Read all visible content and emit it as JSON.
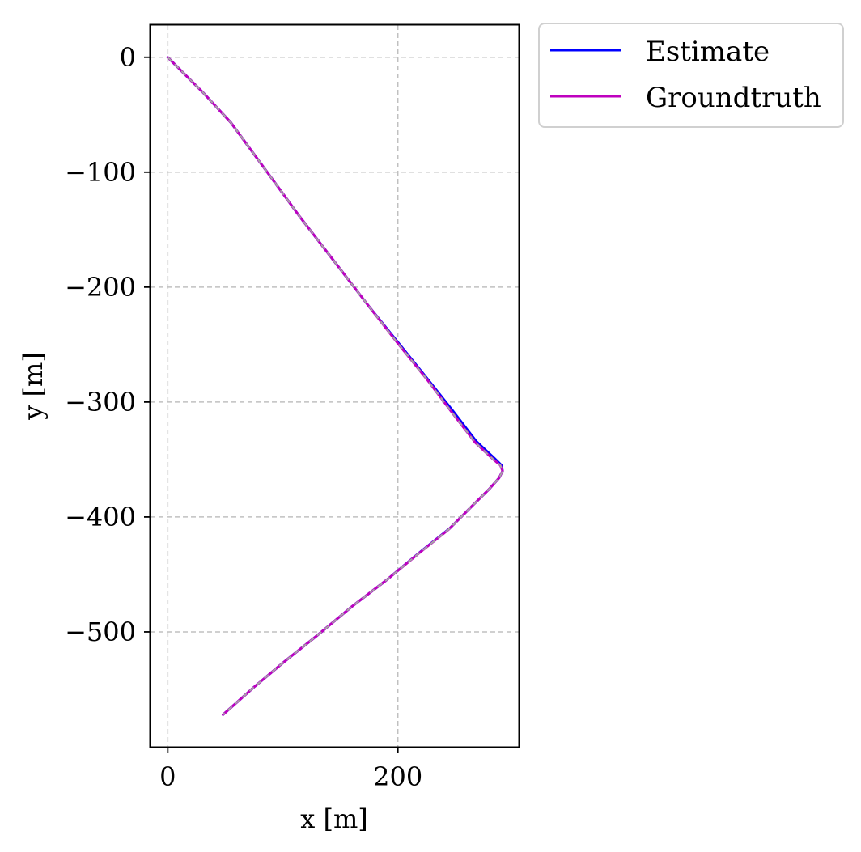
{
  "chart_data": {
    "type": "line",
    "xlabel": "x [m]",
    "ylabel": "y [m]",
    "xlim": [
      -15,
      305
    ],
    "ylim": [
      -600,
      28
    ],
    "x_ticks": [
      0,
      200
    ],
    "x_tick_labels": [
      "0",
      "200"
    ],
    "y_ticks": [
      0,
      -100,
      -200,
      -300,
      -400,
      -500
    ],
    "y_tick_labels": [
      "0",
      "−100",
      "−200",
      "−300",
      "−400",
      "−500"
    ],
    "grid": true,
    "legend_position": "outside top-right",
    "series": [
      {
        "name": "Estimate",
        "color": "#0000ff",
        "x": [
          0,
          30,
          55,
          85,
          115,
          145,
          175,
          200,
          225,
          248,
          268,
          284,
          290,
          291,
          288,
          280,
          265,
          245,
          220,
          190,
          160,
          130,
          100,
          75,
          48
        ],
        "y": [
          0,
          -30,
          -57,
          -98,
          -139,
          -178,
          -217,
          -248,
          -279,
          -308,
          -334,
          -349,
          -355,
          -360,
          -366,
          -375,
          -390,
          -410,
          -430,
          -455,
          -478,
          -503,
          -527,
          -548,
          -572
        ]
      },
      {
        "name": "Groundtruth",
        "color": "#bf00bf",
        "x": [
          0,
          30,
          55,
          85,
          115,
          145,
          175,
          200,
          225,
          247,
          267,
          283,
          289,
          291,
          288,
          280,
          264,
          244,
          219,
          190,
          160,
          130,
          100,
          75,
          48
        ],
        "y": [
          0,
          -30,
          -57,
          -98,
          -139,
          -178,
          -217,
          -249,
          -280,
          -309,
          -335,
          -350,
          -355,
          -360,
          -366,
          -375,
          -391,
          -411,
          -431,
          -455,
          -478,
          -503,
          -527,
          -548,
          -572
        ]
      }
    ],
    "overlay_line": {
      "color": "#a6a6a6",
      "style": "dashed"
    }
  }
}
